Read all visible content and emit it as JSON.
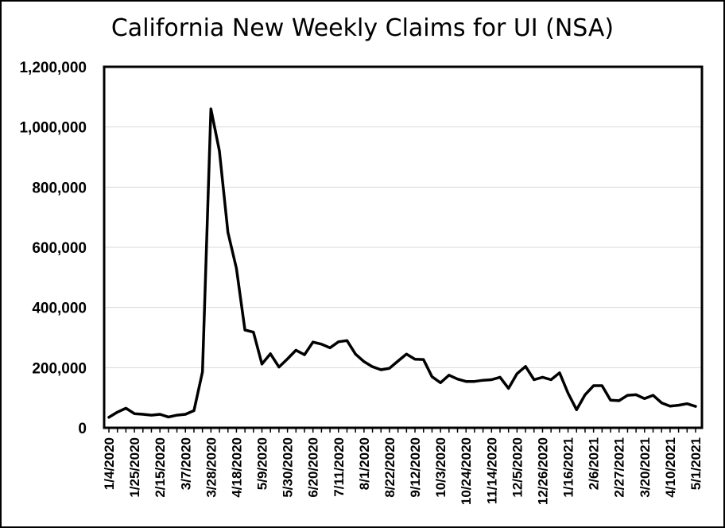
{
  "chart_data": {
    "type": "line",
    "title": "California New Weekly Claims for UI (NSA)",
    "xlabel": "",
    "ylabel": "",
    "ylim": [
      0,
      1200000
    ],
    "grid": true,
    "y_ticks": [
      "0",
      "200,000",
      "400,000",
      "600,000",
      "800,000",
      "1,000,000",
      "1,200,000"
    ],
    "x_tick_labels": [
      "1/4/2020",
      "1/25/2020",
      "2/15/2020",
      "3/7/2020",
      "3/28/2020",
      "4/18/2020",
      "5/9/2020",
      "5/30/2020",
      "6/20/2020",
      "7/11/2020",
      "8/1/2020",
      "8/22/2020",
      "9/12/2020",
      "10/3/2020",
      "10/24/2020",
      "11/14/2020",
      "12/5/2020",
      "12/26/2020",
      "1/16/2021",
      "2/6/2021",
      "2/27/2021",
      "3/20/2021",
      "4/10/2021",
      "5/1/2021"
    ],
    "series": [
      {
        "name": "",
        "color": "#000000",
        "values": [
          35000,
          52000,
          65000,
          47000,
          45000,
          42000,
          45000,
          36000,
          42000,
          45000,
          57000,
          186000,
          1060000,
          920000,
          650000,
          530000,
          325000,
          318000,
          212000,
          246000,
          202000,
          229000,
          258000,
          243000,
          285000,
          278000,
          266000,
          286000,
          290000,
          245000,
          220000,
          203000,
          193000,
          198000,
          222000,
          245000,
          228000,
          227000,
          170000,
          150000,
          175000,
          162000,
          154000,
          154000,
          158000,
          160000,
          168000,
          131000,
          180000,
          204000,
          160000,
          168000,
          160000,
          183000,
          115000,
          60000,
          110000,
          140000,
          140000,
          92000,
          90000,
          108000,
          110000,
          97000,
          108000,
          83000,
          72000,
          75000,
          80000,
          71000
        ]
      }
    ]
  }
}
